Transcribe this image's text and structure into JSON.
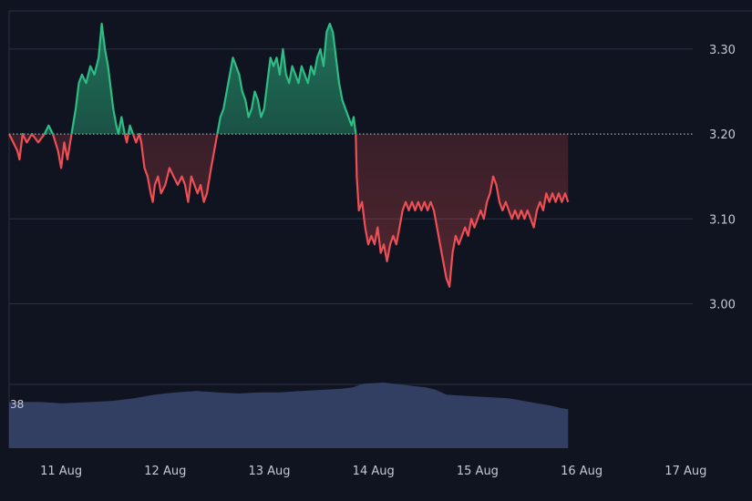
{
  "chart_data": {
    "type": "area",
    "baseline": 3.2,
    "ylim": [
      2.905,
      3.345
    ],
    "yticks": [
      "3.30",
      "3.20",
      "3.10",
      "3.00"
    ],
    "xticks": [
      "11 Aug",
      "12 Aug",
      "13 Aug",
      "14 Aug",
      "15 Aug",
      "16 Aug",
      "17 Aug"
    ],
    "xlim": [
      0,
      7.04
    ],
    "grid": true,
    "colors": {
      "above": "#2ebd85",
      "below": "#ef4f54",
      "volume": "#3a4570",
      "background": "#0f1420"
    },
    "series": [
      {
        "values": [
          [
            0.0,
            3.2
          ],
          [
            0.04,
            3.19
          ],
          [
            0.08,
            3.18
          ],
          [
            0.1,
            3.17
          ],
          [
            0.13,
            3.2
          ],
          [
            0.17,
            3.19
          ],
          [
            0.22,
            3.2
          ],
          [
            0.28,
            3.19
          ],
          [
            0.34,
            3.2
          ],
          [
            0.38,
            3.21
          ],
          [
            0.42,
            3.2
          ],
          [
            0.47,
            3.18
          ],
          [
            0.5,
            3.16
          ],
          [
            0.53,
            3.19
          ],
          [
            0.56,
            3.17
          ],
          [
            0.6,
            3.2
          ],
          [
            0.64,
            3.23
          ],
          [
            0.67,
            3.26
          ],
          [
            0.7,
            3.27
          ],
          [
            0.74,
            3.26
          ],
          [
            0.78,
            3.28
          ],
          [
            0.82,
            3.27
          ],
          [
            0.86,
            3.29
          ],
          [
            0.89,
            3.33
          ],
          [
            0.92,
            3.3
          ],
          [
            0.95,
            3.28
          ],
          [
            0.98,
            3.25
          ],
          [
            1.0,
            3.23
          ],
          [
            1.03,
            3.21
          ],
          [
            1.05,
            3.2
          ],
          [
            1.08,
            3.22
          ],
          [
            1.11,
            3.2
          ],
          [
            1.13,
            3.19
          ],
          [
            1.16,
            3.21
          ],
          [
            1.19,
            3.2
          ],
          [
            1.22,
            3.19
          ],
          [
            1.25,
            3.2
          ],
          [
            1.27,
            3.19
          ],
          [
            1.3,
            3.16
          ],
          [
            1.33,
            3.15
          ],
          [
            1.36,
            3.13
          ],
          [
            1.38,
            3.12
          ],
          [
            1.4,
            3.14
          ],
          [
            1.43,
            3.15
          ],
          [
            1.46,
            3.13
          ],
          [
            1.5,
            3.14
          ],
          [
            1.54,
            3.16
          ],
          [
            1.58,
            3.15
          ],
          [
            1.62,
            3.14
          ],
          [
            1.66,
            3.15
          ],
          [
            1.69,
            3.14
          ],
          [
            1.72,
            3.12
          ],
          [
            1.75,
            3.15
          ],
          [
            1.78,
            3.14
          ],
          [
            1.81,
            3.13
          ],
          [
            1.84,
            3.14
          ],
          [
            1.87,
            3.12
          ],
          [
            1.9,
            3.13
          ],
          [
            1.94,
            3.16
          ],
          [
            1.97,
            3.18
          ],
          [
            2.0,
            3.2
          ],
          [
            2.03,
            3.22
          ],
          [
            2.06,
            3.23
          ],
          [
            2.09,
            3.25
          ],
          [
            2.12,
            3.27
          ],
          [
            2.15,
            3.29
          ],
          [
            2.18,
            3.28
          ],
          [
            2.21,
            3.27
          ],
          [
            2.24,
            3.25
          ],
          [
            2.27,
            3.24
          ],
          [
            2.3,
            3.22
          ],
          [
            2.33,
            3.23
          ],
          [
            2.36,
            3.25
          ],
          [
            2.39,
            3.24
          ],
          [
            2.42,
            3.22
          ],
          [
            2.45,
            3.23
          ],
          [
            2.48,
            3.26
          ],
          [
            2.51,
            3.29
          ],
          [
            2.54,
            3.28
          ],
          [
            2.57,
            3.29
          ],
          [
            2.6,
            3.27
          ],
          [
            2.63,
            3.3
          ],
          [
            2.66,
            3.27
          ],
          [
            2.69,
            3.26
          ],
          [
            2.72,
            3.28
          ],
          [
            2.75,
            3.27
          ],
          [
            2.78,
            3.26
          ],
          [
            2.81,
            3.28
          ],
          [
            2.84,
            3.27
          ],
          [
            2.87,
            3.26
          ],
          [
            2.9,
            3.28
          ],
          [
            2.93,
            3.27
          ],
          [
            2.96,
            3.29
          ],
          [
            2.99,
            3.3
          ],
          [
            3.02,
            3.28
          ],
          [
            3.05,
            3.32
          ],
          [
            3.08,
            3.33
          ],
          [
            3.11,
            3.32
          ],
          [
            3.14,
            3.29
          ],
          [
            3.17,
            3.26
          ],
          [
            3.2,
            3.24
          ],
          [
            3.23,
            3.23
          ],
          [
            3.26,
            3.22
          ],
          [
            3.29,
            3.21
          ],
          [
            3.31,
            3.22
          ],
          [
            3.33,
            3.2
          ],
          [
            3.34,
            3.15
          ],
          [
            3.36,
            3.11
          ],
          [
            3.39,
            3.12
          ],
          [
            3.42,
            3.09
          ],
          [
            3.45,
            3.07
          ],
          [
            3.48,
            3.08
          ],
          [
            3.51,
            3.07
          ],
          [
            3.54,
            3.09
          ],
          [
            3.57,
            3.06
          ],
          [
            3.6,
            3.07
          ],
          [
            3.63,
            3.05
          ],
          [
            3.66,
            3.07
          ],
          [
            3.69,
            3.08
          ],
          [
            3.72,
            3.07
          ],
          [
            3.75,
            3.09
          ],
          [
            3.78,
            3.11
          ],
          [
            3.81,
            3.12
          ],
          [
            3.84,
            3.11
          ],
          [
            3.87,
            3.12
          ],
          [
            3.9,
            3.11
          ],
          [
            3.93,
            3.12
          ],
          [
            3.96,
            3.11
          ],
          [
            3.99,
            3.12
          ],
          [
            4.02,
            3.11
          ],
          [
            4.05,
            3.12
          ],
          [
            4.08,
            3.11
          ],
          [
            4.11,
            3.09
          ],
          [
            4.14,
            3.07
          ],
          [
            4.17,
            3.05
          ],
          [
            4.2,
            3.03
          ],
          [
            4.23,
            3.02
          ],
          [
            4.26,
            3.06
          ],
          [
            4.29,
            3.08
          ],
          [
            4.32,
            3.07
          ],
          [
            4.35,
            3.08
          ],
          [
            4.38,
            3.09
          ],
          [
            4.41,
            3.08
          ],
          [
            4.44,
            3.1
          ],
          [
            4.47,
            3.09
          ],
          [
            4.5,
            3.1
          ],
          [
            4.53,
            3.11
          ],
          [
            4.56,
            3.1
          ],
          [
            4.59,
            3.12
          ],
          [
            4.62,
            3.13
          ],
          [
            4.65,
            3.15
          ],
          [
            4.68,
            3.14
          ],
          [
            4.71,
            3.12
          ],
          [
            4.74,
            3.11
          ],
          [
            4.77,
            3.12
          ],
          [
            4.8,
            3.11
          ],
          [
            4.83,
            3.1
          ],
          [
            4.86,
            3.11
          ],
          [
            4.89,
            3.1
          ],
          [
            4.92,
            3.11
          ],
          [
            4.95,
            3.1
          ],
          [
            4.98,
            3.11
          ],
          [
            5.01,
            3.1
          ],
          [
            5.04,
            3.09
          ],
          [
            5.07,
            3.11
          ],
          [
            5.1,
            3.12
          ],
          [
            5.13,
            3.11
          ],
          [
            5.16,
            3.13
          ],
          [
            5.19,
            3.12
          ],
          [
            5.22,
            3.13
          ],
          [
            5.25,
            3.12
          ],
          [
            5.28,
            3.13
          ],
          [
            5.31,
            3.12
          ],
          [
            5.34,
            3.13
          ],
          [
            5.37,
            3.12
          ]
        ]
      }
    ],
    "volume": {
      "label": "38",
      "values": [
        [
          0.0,
          38
        ],
        [
          0.3,
          38
        ],
        [
          0.5,
          37
        ],
        [
          0.8,
          38
        ],
        [
          1.0,
          39
        ],
        [
          1.2,
          41
        ],
        [
          1.4,
          44
        ],
        [
          1.6,
          46
        ],
        [
          1.8,
          47
        ],
        [
          2.0,
          46
        ],
        [
          2.2,
          45
        ],
        [
          2.4,
          46
        ],
        [
          2.6,
          46
        ],
        [
          2.8,
          47
        ],
        [
          3.0,
          48
        ],
        [
          3.2,
          49
        ],
        [
          3.3,
          50
        ],
        [
          3.4,
          53
        ],
        [
          3.6,
          54
        ],
        [
          3.8,
          52
        ],
        [
          4.0,
          50
        ],
        [
          4.1,
          48
        ],
        [
          4.2,
          44
        ],
        [
          4.4,
          43
        ],
        [
          4.6,
          42
        ],
        [
          4.8,
          41
        ],
        [
          5.0,
          38
        ],
        [
          5.2,
          35
        ],
        [
          5.3,
          33
        ],
        [
          5.37,
          32
        ]
      ]
    }
  }
}
